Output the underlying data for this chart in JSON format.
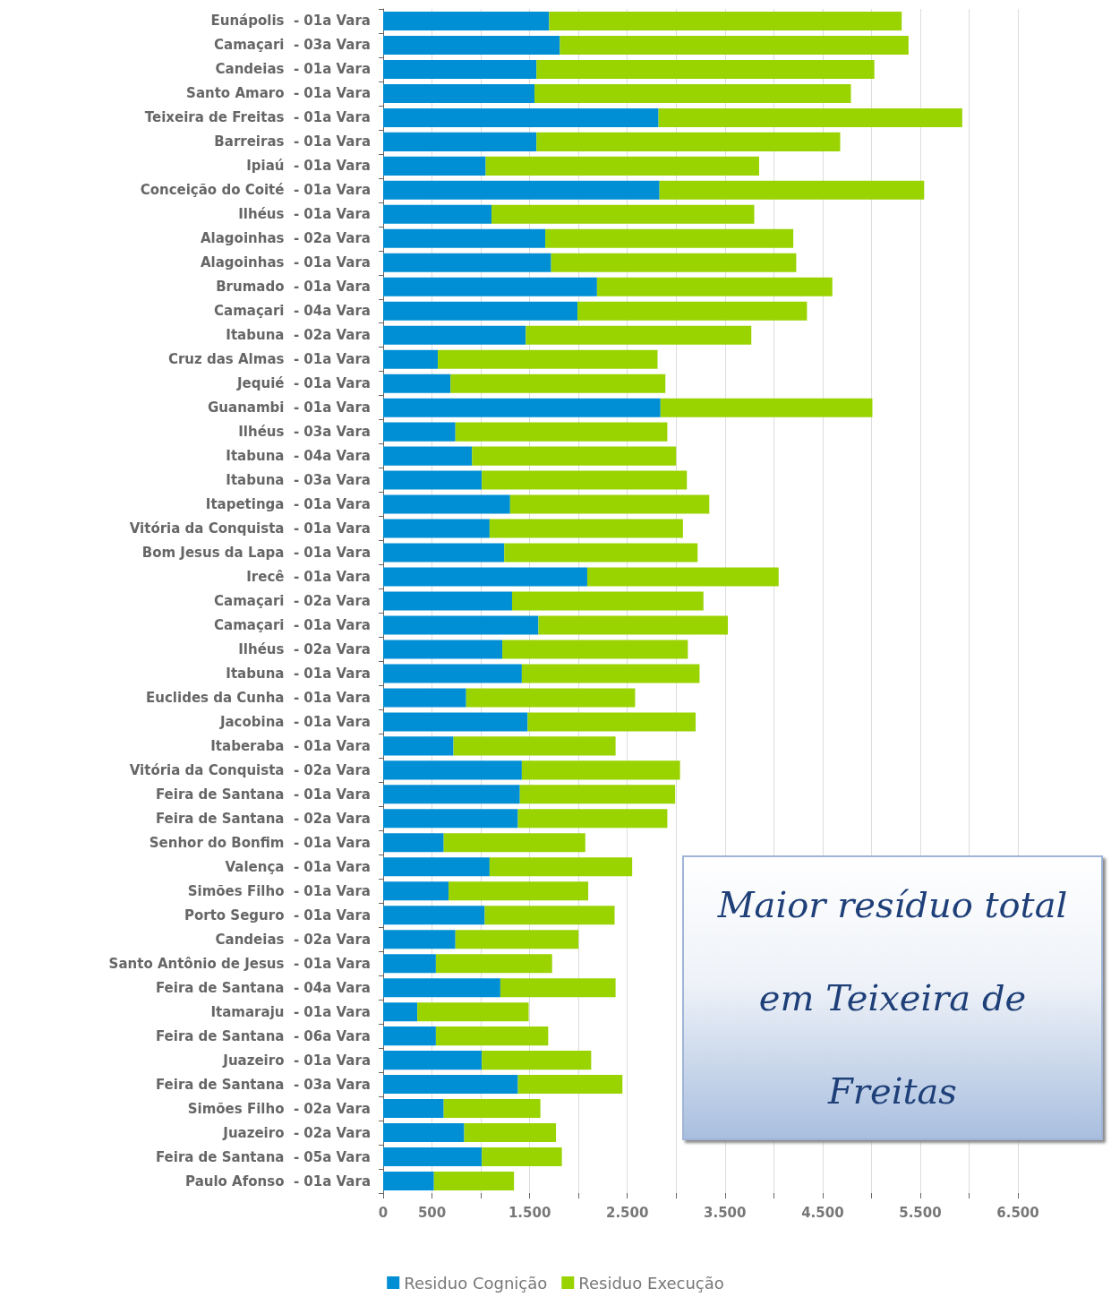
{
  "chart_data": {
    "type": "bar",
    "orientation": "horizontal",
    "stacked": true,
    "categories": [
      "Eunápolis  - 01a Vara",
      "Camaçari  - 03a Vara",
      "Candeias  - 01a Vara",
      "Santo Amaro  - 01a Vara",
      "Teixeira de Freitas  - 01a Vara",
      "Barreiras  - 01a Vara",
      "Ipiaú  - 01a Vara",
      "Conceição do Coité  - 01a Vara",
      "Ilhéus  - 01a Vara",
      "Alagoinhas  - 02a Vara",
      "Alagoinhas  - 01a Vara",
      "Brumado  - 01a Vara",
      "Camaçari  - 04a Vara",
      "Itabuna  - 02a Vara",
      "Cruz das Almas  - 01a Vara",
      "Jequié  - 01a Vara",
      "Guanambi  - 01a Vara",
      "Ilhéus  - 03a Vara",
      "Itabuna  - 04a Vara",
      "Itabuna  - 03a Vara",
      "Itapetinga  - 01a Vara",
      "Vitória da Conquista  - 01a Vara",
      "Bom Jesus da Lapa  - 01a Vara",
      "Irecê  - 01a Vara",
      "Camaçari  - 02a Vara",
      "Camaçari  - 01a Vara",
      "Ilhéus  - 02a Vara",
      "Itabuna  - 01a Vara",
      "Euclides da Cunha  - 01a Vara",
      "Jacobina  - 01a Vara",
      "Itaberaba  - 01a Vara",
      "Vitória da Conquista  - 02a Vara",
      "Feira de Santana  - 01a Vara",
      "Feira de Santana  - 02a Vara",
      "Senhor do Bonfim  - 01a Vara",
      "Valença  - 01a Vara",
      "Simões Filho  - 01a Vara",
      "Porto Seguro  - 01a Vara",
      "Candeias  - 02a Vara",
      "Santo Antônio de Jesus  - 01a Vara",
      "Feira de Santana  - 04a Vara",
      "Itamaraju  - 01a Vara",
      "Feira de Santana  - 06a Vara",
      "Juazeiro  - 01a Vara",
      "Feira de Santana  - 03a Vara",
      "Simões Filho  - 02a Vara",
      "Juazeiro  - 02a Vara",
      "Feira de Santana  - 05a Vara",
      "Paulo Afonso  - 01a Vara"
    ],
    "series": [
      {
        "name": "Residuo Cognição",
        "color": "#008fd5",
        "values": [
          1700,
          1810,
          1570,
          1550,
          2820,
          1570,
          1050,
          2830,
          1110,
          1660,
          1720,
          2190,
          1990,
          1460,
          560,
          690,
          2840,
          740,
          910,
          1010,
          1300,
          1090,
          1240,
          2090,
          1320,
          1590,
          1220,
          1420,
          850,
          1480,
          720,
          1420,
          1400,
          1380,
          620,
          1090,
          670,
          1040,
          740,
          540,
          1200,
          350,
          540,
          1010,
          1380,
          620,
          830,
          1010,
          520
        ]
      },
      {
        "name": "Residuo Execução",
        "color": "#99d300",
        "values": [
          3610,
          3570,
          3460,
          3240,
          3110,
          3110,
          2800,
          2710,
          2690,
          2540,
          2510,
          2410,
          2350,
          2310,
          2250,
          2200,
          2170,
          2170,
          2090,
          2100,
          2040,
          1980,
          1980,
          1960,
          1960,
          1940,
          1900,
          1820,
          1730,
          1720,
          1660,
          1620,
          1590,
          1530,
          1450,
          1460,
          1430,
          1330,
          1260,
          1190,
          1180,
          1140,
          1150,
          1120,
          1070,
          990,
          940,
          820,
          820
        ]
      }
    ],
    "xlim": [
      0,
      6500
    ],
    "xticks": [
      0,
      500,
      {
        "value": 1000,
        "label": null
      },
      {
        "value": 1500,
        "label": "1.500"
      },
      {
        "value": 2000,
        "label": null
      },
      {
        "value": 2500,
        "label": "2.500"
      },
      {
        "value": 3000,
        "label": null
      },
      {
        "value": 3500,
        "label": "3.500"
      },
      {
        "value": 4000,
        "label": null
      },
      {
        "value": 4500,
        "label": "4.500"
      },
      {
        "value": 5000,
        "label": null
      },
      {
        "value": 5500,
        "label": "5.500"
      },
      {
        "value": 6000,
        "label": null
      },
      {
        "value": 6500,
        "label": "6.500"
      }
    ],
    "grid": "x",
    "legend": "bottom",
    "annotations": [
      "Maior resíduo total em Teixeira de Freitas"
    ]
  }
}
